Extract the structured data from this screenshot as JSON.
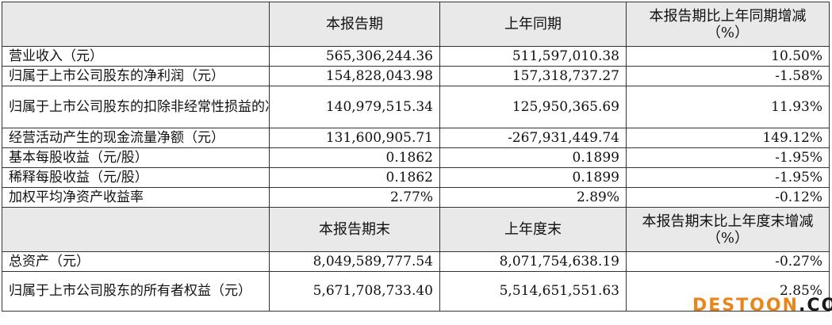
{
  "header1": {
    "col1": "本报告期",
    "col2": "上年同期",
    "col3_line1": "本报告期比上年同期增减",
    "col3_line2": "（%）"
  },
  "rows1": [
    {
      "label": "营业收入（元）",
      "current": "565,306,244.36",
      "prior": "511,597,010.38",
      "change": "10.50%"
    },
    {
      "label": "归属于上市公司股东的净利润（元）",
      "current": "154,828,043.98",
      "prior": "157,318,737.27",
      "change": "-1.58%"
    },
    {
      "label": "归属于上市公司股东的扣除非经常性损益的净利润（元）",
      "current": "140,979,515.34",
      "prior": "125,950,365.69",
      "change": "11.93%"
    },
    {
      "label": "经营活动产生的现金流量净额（元）",
      "current": "131,600,905.71",
      "prior": "-267,931,449.74",
      "change": "149.12%"
    },
    {
      "label": "基本每股收益（元/股）",
      "current": "0.1862",
      "prior": "0.1899",
      "change": "-1.95%"
    },
    {
      "label": "稀释每股收益（元/股）",
      "current": "0.1862",
      "prior": "0.1899",
      "change": "-1.95%"
    },
    {
      "label": "加权平均净资产收益率",
      "current": "2.77%",
      "prior": "2.89%",
      "change": "-0.12%"
    }
  ],
  "header2": {
    "col1": "本报告期末",
    "col2": "上年度末",
    "col3_line1": "本报告期末比上年度末增减",
    "col3_line2": "（%）"
  },
  "rows2": [
    {
      "label": "总资产（元）",
      "current": "8,049,589,777.54",
      "prior": "8,071,754,638.19",
      "change": "-0.27%"
    },
    {
      "label": "归属于上市公司股东的所有者权益（元）",
      "current": "5,671,708,733.40",
      "prior": "5,514,651,551.63",
      "change": "2.85%"
    }
  ],
  "watermark": {
    "part1": "DESTOON",
    "part2": ".COM"
  }
}
